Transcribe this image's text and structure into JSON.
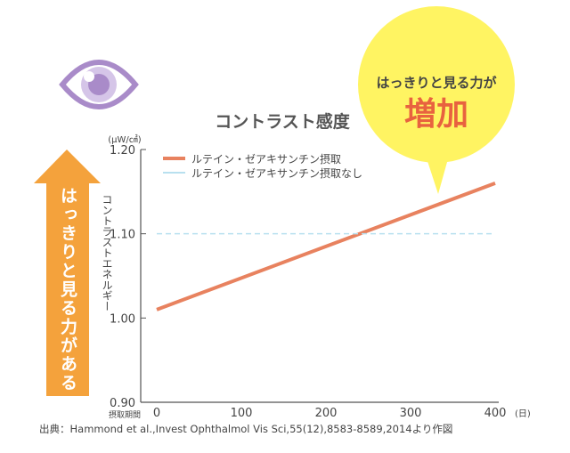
{
  "chart_data": {
    "type": "line",
    "title": "コントラスト感度",
    "ylabel": "コントラストエネルギー",
    "yunit": "(μW/㎠)",
    "xlabel": "摂取期間",
    "xunit": "(日)",
    "xlim": [
      0,
      400
    ],
    "ylim": [
      0.9,
      1.2
    ],
    "xticks": [
      "0",
      "100",
      "200",
      "300",
      "400"
    ],
    "yticks": [
      "0.90",
      "1.00",
      "1.10",
      "1.20"
    ],
    "legend_position": "top-left",
    "grid": false,
    "series": [
      {
        "name": "ルテイン・ゼアキサンチン摂取",
        "x": [
          0,
          400
        ],
        "y": [
          1.01,
          1.16
        ],
        "color": "#e8825f",
        "style": "solid"
      },
      {
        "name": "ルテイン・ゼアキサンチン摂取なし",
        "x": [
          0,
          400
        ],
        "y": [
          1.1,
          1.1
        ],
        "color": "#b8e0ef",
        "style": "dashed"
      }
    ]
  },
  "arrow_text": "はっきりと見る力がある",
  "bubble": {
    "line1": "はっきりと見る力が",
    "line2": "増加",
    "color": "#fff462"
  },
  "source": "出典：Hammond et al.,Invest Ophthalmol Vis Sci,55(12),8583-8589,2014より作図",
  "colors": {
    "arrow": "#f4a23c",
    "eye": "#a98bc9",
    "bubble_text": "#e8623f"
  },
  "icons": [
    "eye-icon",
    "arrow-up-icon"
  ]
}
